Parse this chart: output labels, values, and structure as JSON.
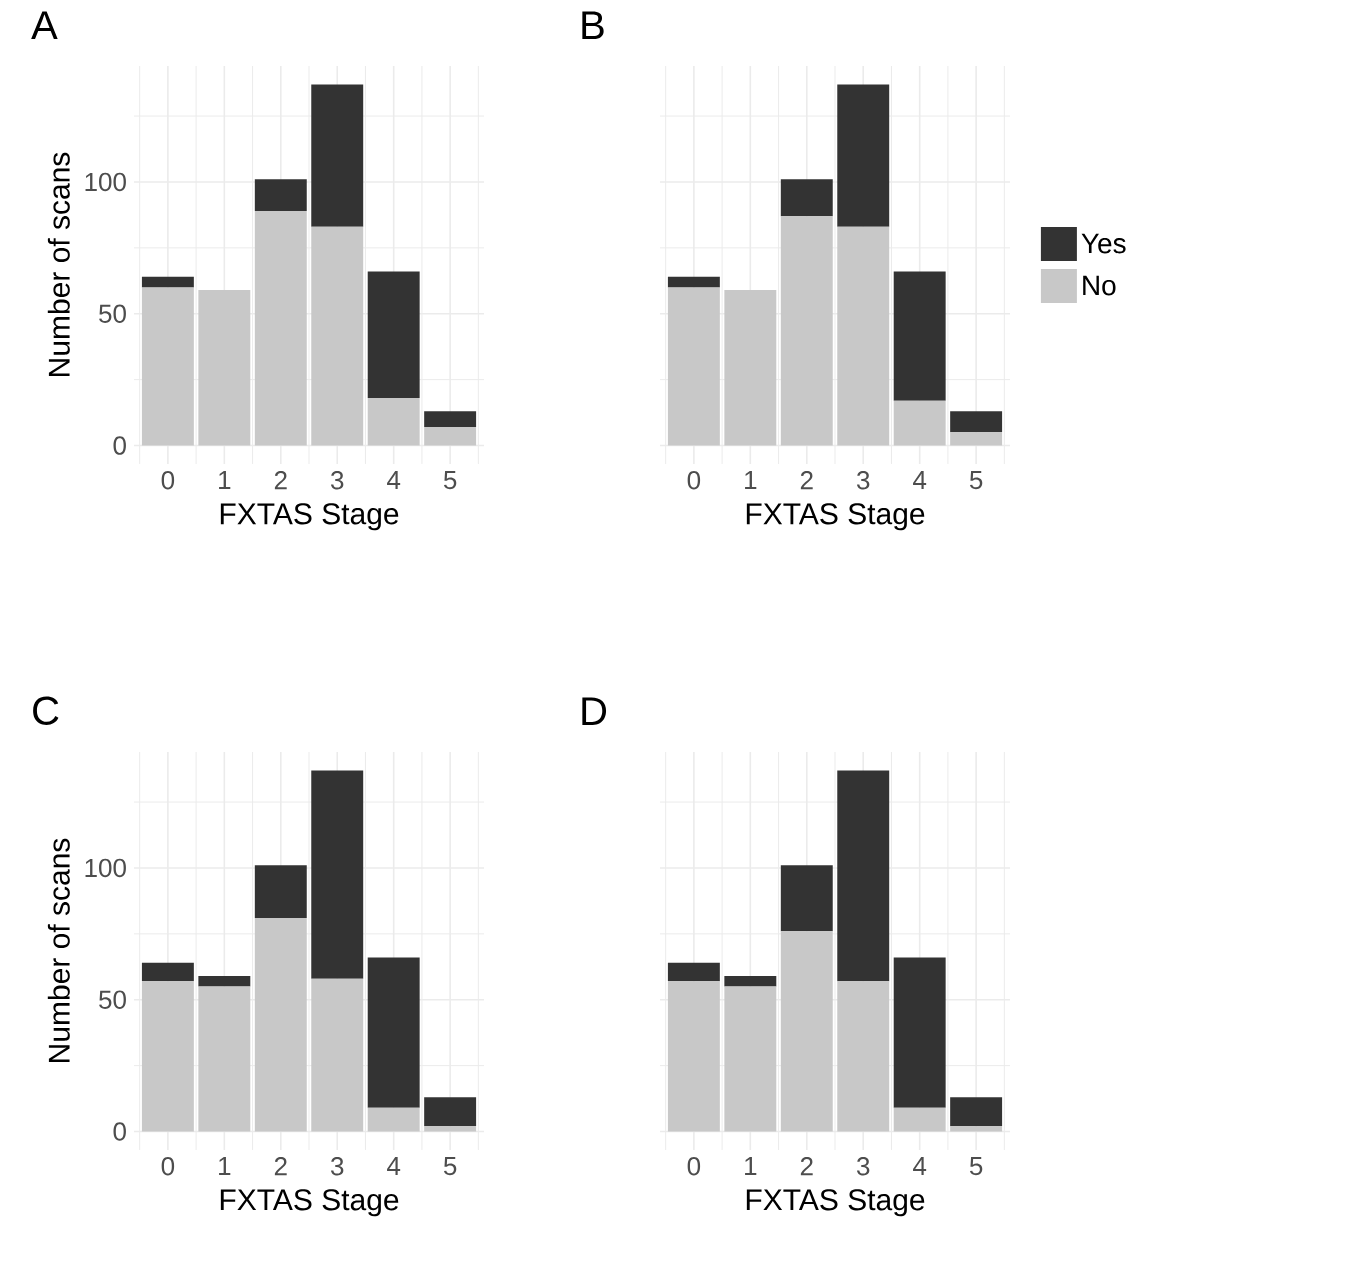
{
  "chart_data": [
    {
      "type": "bar",
      "title": "A",
      "categories": [
        "0",
        "1",
        "2",
        "3",
        "4",
        "5"
      ],
      "xlabel": "FXTAS Stage",
      "ylabel": "Number of scans",
      "stacked": true,
      "ylim": [
        -7,
        144
      ],
      "yticks": [
        0,
        50,
        100
      ],
      "grid": true,
      "series": [
        {
          "color": "#c8c8c8",
          "values": [
            60,
            59,
            89,
            83,
            18,
            7
          ]
        },
        {
          "color": "#333333",
          "values": [
            4,
            0,
            12,
            54,
            48,
            6
          ]
        }
      ]
    },
    {
      "type": "bar",
      "title": "B",
      "categories": [
        "0",
        "1",
        "2",
        "3",
        "4",
        "5"
      ],
      "xlabel": "FXTAS Stage",
      "stacked": true,
      "ylim": [
        -7,
        144
      ],
      "yticks": [
        0,
        50,
        100
      ],
      "grid": true,
      "tick_labels": "x",
      "legend": "right",
      "series": [
        {
          "name": "No",
          "color": "#c8c8c8",
          "values": [
            60,
            59,
            87,
            83,
            17,
            5
          ]
        },
        {
          "name": "Yes",
          "color": "#333333",
          "values": [
            4,
            0,
            14,
            54,
            49,
            8
          ]
        }
      ]
    },
    {
      "type": "bar",
      "title": "C",
      "categories": [
        "0",
        "1",
        "2",
        "3",
        "4",
        "5"
      ],
      "xlabel": "FXTAS Stage",
      "ylabel": "Number of scans",
      "stacked": true,
      "ylim": [
        -7,
        144
      ],
      "yticks": [
        0,
        50,
        100
      ],
      "grid": true,
      "series": [
        {
          "color": "#c8c8c8",
          "values": [
            57,
            55,
            81,
            58,
            9,
            2
          ]
        },
        {
          "color": "#333333",
          "values": [
            7,
            4,
            20,
            79,
            57,
            11
          ]
        }
      ]
    },
    {
      "type": "bar",
      "title": "D",
      "categories": [
        "0",
        "1",
        "2",
        "3",
        "4",
        "5"
      ],
      "xlabel": "FXTAS Stage",
      "stacked": true,
      "ylim": [
        -7,
        144
      ],
      "yticks": [
        0,
        50,
        100
      ],
      "grid": true,
      "tick_labels": "x",
      "series": [
        {
          "color": "#c8c8c8",
          "values": [
            57,
            55,
            76,
            57,
            9,
            2
          ]
        },
        {
          "color": "#333333",
          "values": [
            7,
            4,
            25,
            80,
            57,
            11
          ]
        }
      ]
    }
  ]
}
